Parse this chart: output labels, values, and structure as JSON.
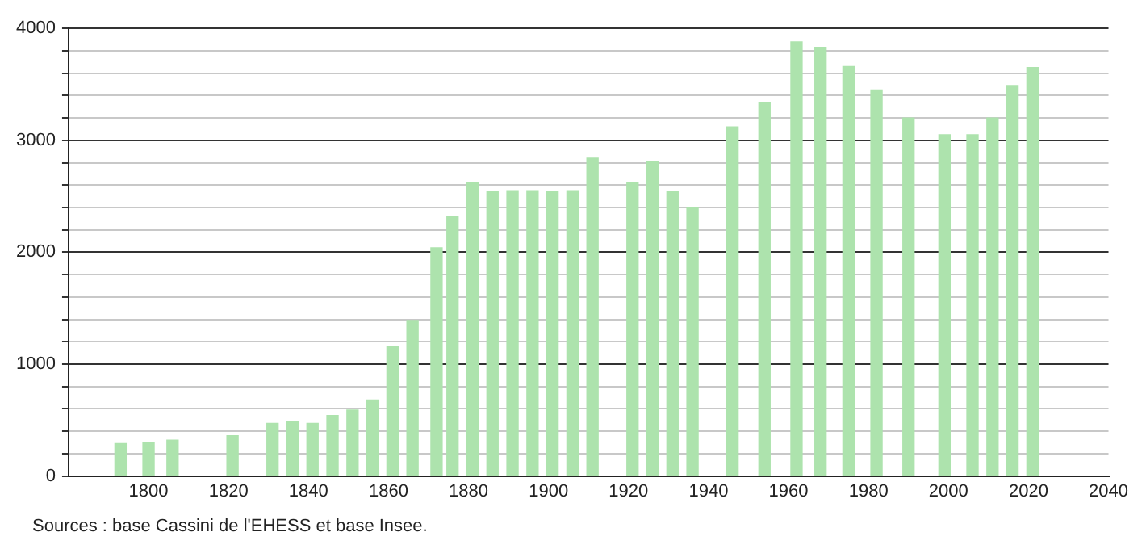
{
  "chart_data": {
    "type": "bar",
    "x": [
      1793,
      1800,
      1806,
      1821,
      1831,
      1836,
      1841,
      1846,
      1851,
      1856,
      1861,
      1866,
      1872,
      1876,
      1881,
      1886,
      1891,
      1896,
      1901,
      1906,
      1911,
      1921,
      1926,
      1931,
      1936,
      1946,
      1954,
      1962,
      1968,
      1975,
      1982,
      1990,
      1999,
      2006,
      2011,
      2016,
      2021
    ],
    "values": [
      290,
      300,
      320,
      360,
      470,
      490,
      470,
      540,
      590,
      680,
      1160,
      1390,
      2040,
      2320,
      2620,
      2540,
      2550,
      2550,
      2540,
      2550,
      2840,
      2620,
      2810,
      2540,
      2400,
      3120,
      3340,
      3880,
      3830,
      3660,
      3450,
      3200,
      3050,
      3050,
      3200,
      3490,
      3650
    ],
    "color": "#ade3ad",
    "xlim": [
      1780,
      2040
    ],
    "xticks": [
      1800,
      1820,
      1840,
      1860,
      1880,
      1900,
      1920,
      1940,
      1960,
      1980,
      2000,
      2020,
      2040
    ],
    "ylim": [
      0,
      4000
    ],
    "yticks": [
      0,
      {
        "value": 200,
        "label": null
      },
      {
        "value": 400,
        "label": null
      },
      {
        "value": 600,
        "label": null
      },
      {
        "value": 800,
        "label": null
      },
      1000,
      {
        "value": 1200,
        "label": null
      },
      {
        "value": 1400,
        "label": null
      },
      {
        "value": 1600,
        "label": null
      },
      {
        "value": 1800,
        "label": null
      },
      2000,
      {
        "value": 2200,
        "label": null
      },
      {
        "value": 2400,
        "label": null
      },
      {
        "value": 2600,
        "label": null
      },
      {
        "value": 2800,
        "label": null
      },
      3000,
      {
        "value": 3200,
        "label": null
      },
      {
        "value": 3400,
        "label": null
      },
      {
        "value": 3600,
        "label": null
      },
      {
        "value": 3800,
        "label": null
      },
      4000
    ],
    "grid": "y",
    "annotations": [
      "Sources : base Cassini de l'EHESS et base Insee."
    ]
  }
}
